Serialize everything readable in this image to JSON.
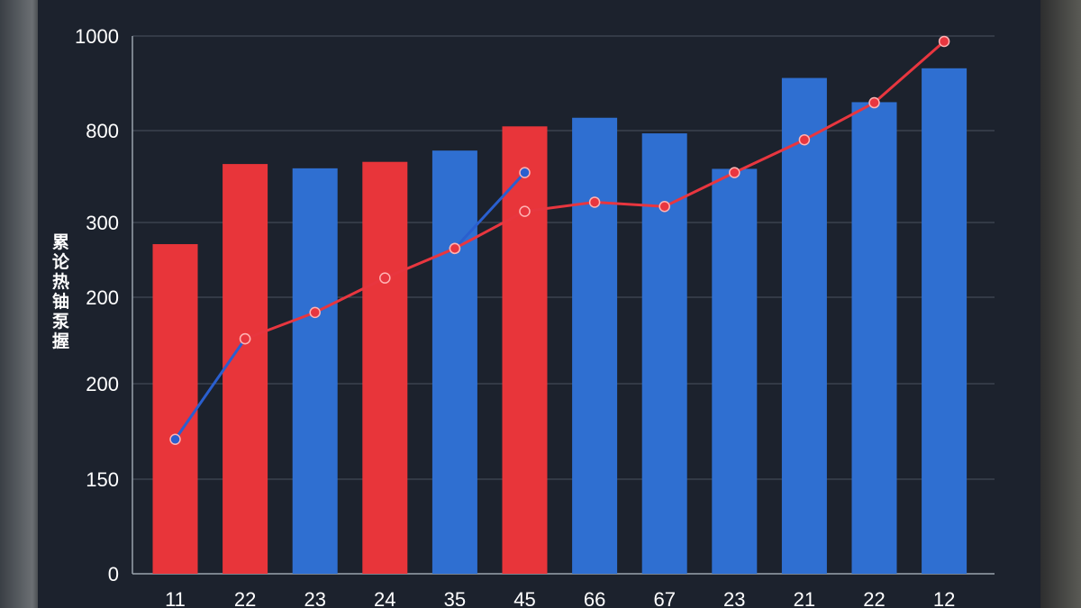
{
  "chart_data": {
    "type": "bar",
    "ylabel": "累论热铀泵握",
    "y_tick_labels": [
      "1000",
      "800",
      "300",
      "200",
      "200",
      "150",
      "0"
    ],
    "categories": [
      "11",
      "22",
      "23",
      "24",
      "35",
      "45",
      "66",
      "67",
      "23",
      "21",
      "22",
      "12"
    ],
    "bar_series": {
      "values": [
        613,
        762,
        754,
        766,
        787,
        832,
        848,
        819,
        753,
        922,
        877,
        940
      ],
      "colors": [
        "#e8353a",
        "#e8353a",
        "#2f6fd1",
        "#e8353a",
        "#2f6fd1",
        "#e8353a",
        "#2f6fd1",
        "#2f6fd1",
        "#2f6fd1",
        "#2f6fd1",
        "#2f6fd1",
        "#2f6fd1"
      ]
    },
    "line_series": [
      {
        "color": "#e8363f",
        "values": [
          null,
          437,
          486,
          550,
          605,
          674,
          691,
          683,
          746,
          807,
          876,
          990
        ]
      },
      {
        "color": "#2a5fcf",
        "values": [
          250,
          437,
          null,
          null,
          605,
          746,
          null,
          null,
          null,
          null,
          null,
          null
        ]
      }
    ],
    "grid": true,
    "ylim": [
      0,
      1000
    ]
  }
}
